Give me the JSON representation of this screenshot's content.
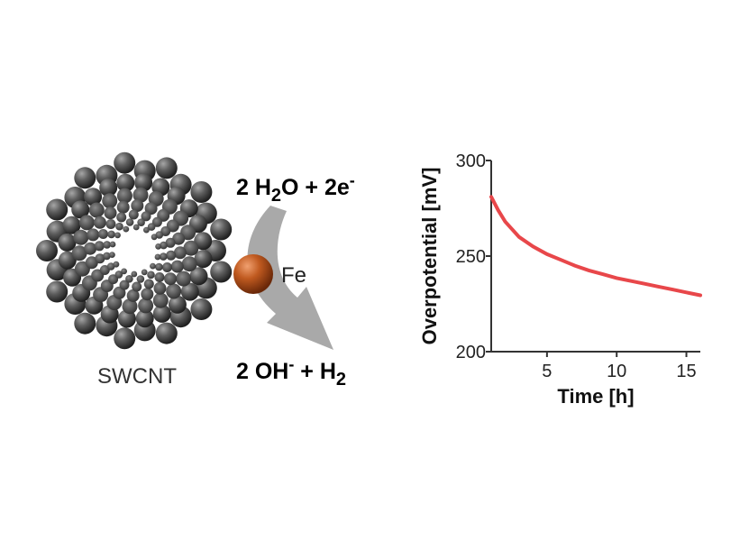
{
  "nanotube": {
    "label": "SWCNT",
    "icon": "carbon-nanotube-icon"
  },
  "reaction": {
    "reactants_prefix": "2 H",
    "reactants_sub": "2",
    "reactants_mid": "O + 2e",
    "reactants_sup": "-",
    "products_prefix": "2 OH",
    "products_sup": "-",
    "products_mid": " + H",
    "products_sub": "2",
    "catalyst_label": "Fe",
    "catalyst_icon": "iron-particle-icon",
    "arrow_icon": "curved-arrow-icon"
  },
  "colors": {
    "sphere_dark": "#4a4a4a",
    "iron": "#b8531a",
    "arrow": "#a9a9a9",
    "line": "#e8474a",
    "axis": "#333333"
  },
  "chart_data": {
    "type": "line",
    "xlabel": "Time [h]",
    "ylabel": "Overpotential [mV]",
    "xlim": [
      1,
      16
    ],
    "ylim": [
      200,
      300
    ],
    "xticks": [
      5,
      10,
      15
    ],
    "yticks": [
      200,
      250,
      300
    ],
    "grid": false,
    "series": [
      {
        "x": [
          1,
          1.5,
          2,
          2.5,
          3,
          4,
          5,
          6,
          7,
          8,
          9,
          10,
          11,
          12,
          13,
          14,
          15,
          16
        ],
        "y": [
          281,
          274,
          268,
          264,
          260,
          255,
          251,
          248,
          245,
          242.5,
          240.5,
          238.5,
          237,
          235.5,
          234,
          232.5,
          231,
          229.5
        ]
      }
    ]
  }
}
